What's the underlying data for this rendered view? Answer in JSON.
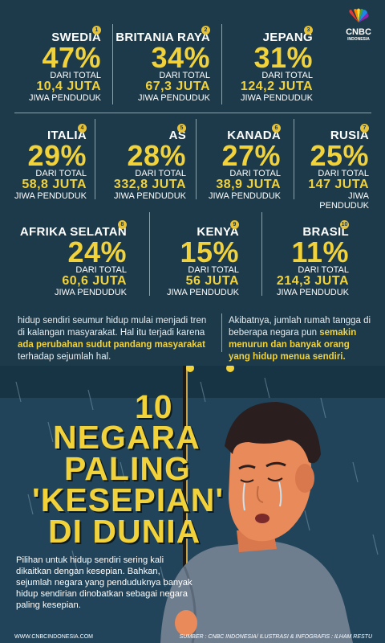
{
  "brand": {
    "name": "CNBC",
    "sub": "INDONESIA"
  },
  "countries": [
    {
      "rank": "1",
      "name": "SWEDIA",
      "percent": "47%",
      "from": "DARI TOTAL",
      "population": "10,4 JUTA",
      "unit": "JIWA PENDUDUK"
    },
    {
      "rank": "2",
      "name": "BRITANIA RAYA",
      "percent": "34%",
      "from": "DARI TOTAL",
      "population": "67,3 JUTA",
      "unit": "JIWA PENDUDUK"
    },
    {
      "rank": "3",
      "name": "JEPANG",
      "percent": "31%",
      "from": "DARI TOTAL",
      "population": "124,2 JUTA",
      "unit": "JIWA PENDUDUK"
    },
    {
      "rank": "4",
      "name": "ITALIA",
      "percent": "29%",
      "from": "DARI TOTAL",
      "population": "58,8 JUTA",
      "unit": "JIWA PENDUDUK"
    },
    {
      "rank": "5",
      "name": "AS",
      "percent": "28%",
      "from": "DARI TOTAL",
      "population": "332,8 JUTA",
      "unit": "JIWA PENDUDUK"
    },
    {
      "rank": "6",
      "name": "KANADA",
      "percent": "27%",
      "from": "DARI TOTAL",
      "population": "38,9 JUTA",
      "unit": "JIWA PENDUDUK"
    },
    {
      "rank": "7",
      "name": "RUSIA",
      "percent": "25%",
      "from": "DARI TOTAL",
      "population": "147 JUTA",
      "unit": "JIWA PENDUDUK"
    },
    {
      "rank": "8",
      "name": "AFRIKA SELATAN",
      "percent": "24%",
      "from": "DARI TOTAL",
      "population": "60,6 JUTA",
      "unit": "JIWA PENDUDUK"
    },
    {
      "rank": "9",
      "name": "KENYA",
      "percent": "15%",
      "from": "DARI TOTAL",
      "population": "56 JUTA",
      "unit": "JIWA PENDUDUK"
    },
    {
      "rank": "10",
      "name": "BRASIL",
      "percent": "11%",
      "from": "DARI TOTAL",
      "population": "214,3 JUTA",
      "unit": "JIWA PENDUDUK"
    }
  ],
  "text_left": {
    "p1": "hidup sendiri seumur hidup mulai menjadi tren di kalangan masyarakat. Hal itu terjadi karena ",
    "hl": "ada perubahan sudut pandang masyarakat",
    "p2": " terhadap sejumlah hal."
  },
  "text_right": {
    "p1": "Akibatnya, jumlah rumah tangga di beberapa negara pun ",
    "hl": "semakin menurun dan banyak orang yang hidup menua sendiri."
  },
  "title": [
    "10",
    "NEGARA",
    "PALING",
    "'KESEPIAN'",
    "DI DUNIA"
  ],
  "description": "Pilihan untuk hidup sendiri sering kali dikaitkan dengan kesepian. Bahkan, sejumlah negara yang penduduknya banyak hidup sendirian dinobatkan sebagai negara paling kesepian.",
  "footer": {
    "site": "WWW.CNBCINDONESIA.COM",
    "source": "SUMBER : CNBC INDONESIA/ ILUSTRASI & INFOGRAFIS : ILHAM RESTU"
  },
  "colors": {
    "background": "#1c3a4a",
    "accent": "#f2d23a",
    "skin": "#e98a5a",
    "sweater": "#6f7e8f"
  }
}
